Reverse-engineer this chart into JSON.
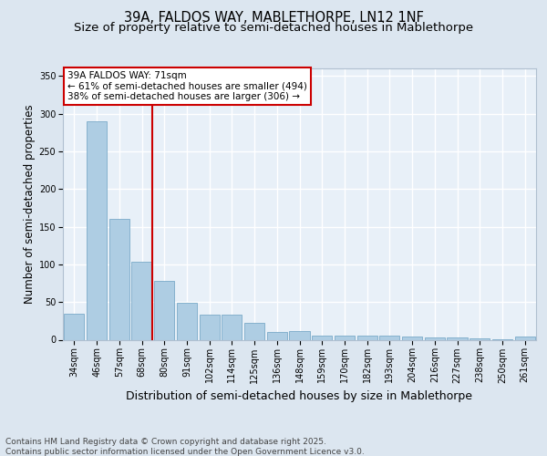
{
  "title": "39A, FALDOS WAY, MABLETHORPE, LN12 1NF",
  "subtitle": "Size of property relative to semi-detached houses in Mablethorpe",
  "xlabel": "Distribution of semi-detached houses by size in Mablethorpe",
  "ylabel": "Number of semi-detached properties",
  "categories": [
    "34sqm",
    "46sqm",
    "57sqm",
    "68sqm",
    "80sqm",
    "91sqm",
    "102sqm",
    "114sqm",
    "125sqm",
    "136sqm",
    "148sqm",
    "159sqm",
    "170sqm",
    "182sqm",
    "193sqm",
    "204sqm",
    "216sqm",
    "227sqm",
    "238sqm",
    "250sqm",
    "261sqm"
  ],
  "values": [
    35,
    290,
    160,
    103,
    78,
    49,
    33,
    33,
    22,
    10,
    11,
    6,
    6,
    5,
    6,
    4,
    3,
    3,
    2,
    1,
    4
  ],
  "bar_color": "#aecde3",
  "bar_edge_color": "#7aaac8",
  "vline_index": 3,
  "vline_color": "#cc0000",
  "annotation_text": "39A FALDOS WAY: 71sqm\n← 61% of semi-detached houses are smaller (494)\n38% of semi-detached houses are larger (306) →",
  "annotation_box_color": "#ffffff",
  "annotation_box_edge_color": "#cc0000",
  "ylim": [
    0,
    360
  ],
  "yticks": [
    0,
    50,
    100,
    150,
    200,
    250,
    300,
    350
  ],
  "background_color": "#dce6f0",
  "plot_background_color": "#e8f0f8",
  "grid_color": "#ffffff",
  "footer": "Contains HM Land Registry data © Crown copyright and database right 2025.\nContains public sector information licensed under the Open Government Licence v3.0.",
  "title_fontsize": 10.5,
  "subtitle_fontsize": 9.5,
  "ylabel_fontsize": 8.5,
  "xlabel_fontsize": 9,
  "tick_fontsize": 7,
  "footer_fontsize": 6.5,
  "annotation_fontsize": 7.5
}
